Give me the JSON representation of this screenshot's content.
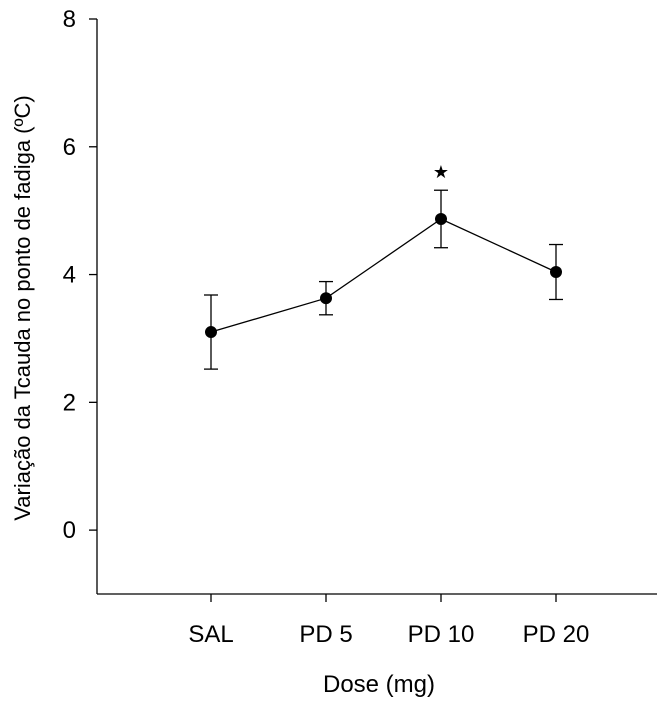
{
  "chart_data": {
    "type": "line",
    "title": "",
    "xlabel": "Dose (mg)",
    "ylabel": "Variação da Tcauda no ponto de fadiga (ºC)",
    "categories": [
      "SAL",
      "PD 5",
      "PD 10",
      "PD 20"
    ],
    "ylim": [
      -1,
      8
    ],
    "yticks": [
      0,
      2,
      4,
      6,
      8
    ],
    "grid": false,
    "legend": "none",
    "series": [
      {
        "values": [
          3.1,
          3.63,
          4.87,
          4.04
        ],
        "errors": [
          0.58,
          0.26,
          0.45,
          0.43
        ]
      }
    ],
    "annotations": [
      {
        "category": "PD 10",
        "symbol": "★",
        "meaning": "significance marker"
      }
    ],
    "colors": {
      "line": "#000000",
      "marker": "#000000",
      "axis": "#000000"
    }
  }
}
